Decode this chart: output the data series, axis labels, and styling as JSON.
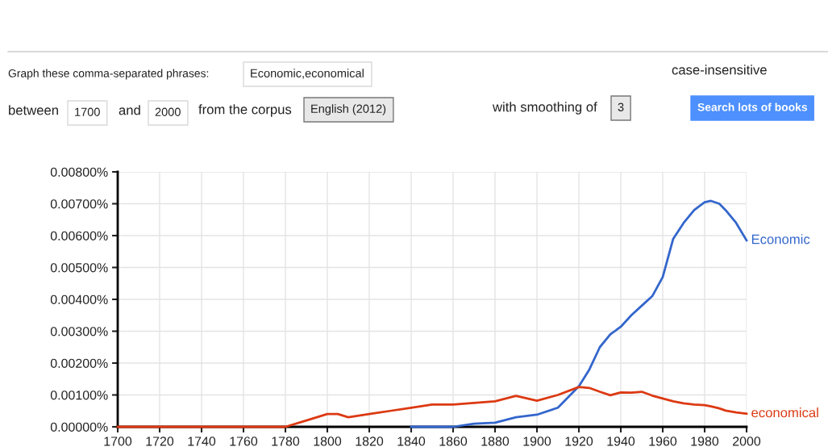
{
  "chart_data": {
    "type": "line",
    "annotations": [
      "Graph these comma-separated phrases:",
      "Economic,economical",
      "case-insensitive",
      "between",
      "1700",
      "and",
      "2000",
      "from the corpus",
      "English (2012)",
      "with smoothing of",
      "3",
      "Search lots of books"
    ],
    "x": [
      1700,
      1720,
      1740,
      1760,
      1780,
      1790,
      1800,
      1805,
      1810,
      1820,
      1830,
      1840,
      1850,
      1860,
      1870,
      1880,
      1890,
      1900,
      1910,
      1920,
      1925,
      1930,
      1935,
      1940,
      1945,
      1950,
      1955,
      1960,
      1965,
      1970,
      1975,
      1980,
      1983,
      1987,
      1990,
      1995,
      2000
    ],
    "series": [
      {
        "name": "Economic",
        "color": "#3366cc",
        "values": [
          null,
          null,
          null,
          null,
          null,
          null,
          null,
          null,
          null,
          null,
          null,
          0.0,
          0.0,
          0.0,
          0.0001,
          0.00013,
          0.0003,
          0.00038,
          0.0006,
          0.00127,
          0.0018,
          0.0025,
          0.0029,
          0.00314,
          0.0035,
          0.0038,
          0.0041,
          0.0047,
          0.0059,
          0.0064,
          0.0068,
          0.00705,
          0.00709,
          0.007,
          0.0068,
          0.0064,
          0.00585
        ]
      },
      {
        "name": "economical",
        "color": "#dc3912",
        "values": [
          0.0,
          0.0,
          0.0,
          0.0,
          0.0,
          0.0002,
          0.0004,
          0.0004,
          0.0003,
          0.0004,
          0.0005,
          0.0006,
          0.0007,
          0.0007,
          0.00075,
          0.0008,
          0.00097,
          0.00082,
          0.001,
          0.00125,
          0.00122,
          0.0011,
          0.00099,
          0.00108,
          0.00107,
          0.0011,
          0.00098,
          0.00089,
          0.0008,
          0.00074,
          0.0007,
          0.00068,
          0.00064,
          0.00058,
          0.00051,
          0.00045,
          0.00041
        ]
      }
    ],
    "xlim": [
      1700,
      2000
    ],
    "xticks": [
      1700,
      1720,
      1740,
      1760,
      1780,
      1800,
      1820,
      1840,
      1860,
      1880,
      1900,
      1920,
      1940,
      1960,
      1980,
      2000
    ],
    "ylim": [
      0,
      0.008
    ],
    "yticks": [
      {
        "value": 0,
        "label": "0.00000%"
      },
      {
        "value": 0.001,
        "label": "0.00100%"
      },
      {
        "value": 0.002,
        "label": "0.00200%"
      },
      {
        "value": 0.003,
        "label": "0.00300%"
      },
      {
        "value": 0.004,
        "label": "0.00400%"
      },
      {
        "value": 0.005,
        "label": "0.00500%"
      },
      {
        "value": 0.006,
        "label": "0.00600%"
      },
      {
        "value": 0.007,
        "label": "0.00700%"
      },
      {
        "value": 0.008,
        "label": "0.00800%"
      }
    ],
    "grid": true,
    "legend": false,
    "marker": "none",
    "line_style": "solid"
  }
}
